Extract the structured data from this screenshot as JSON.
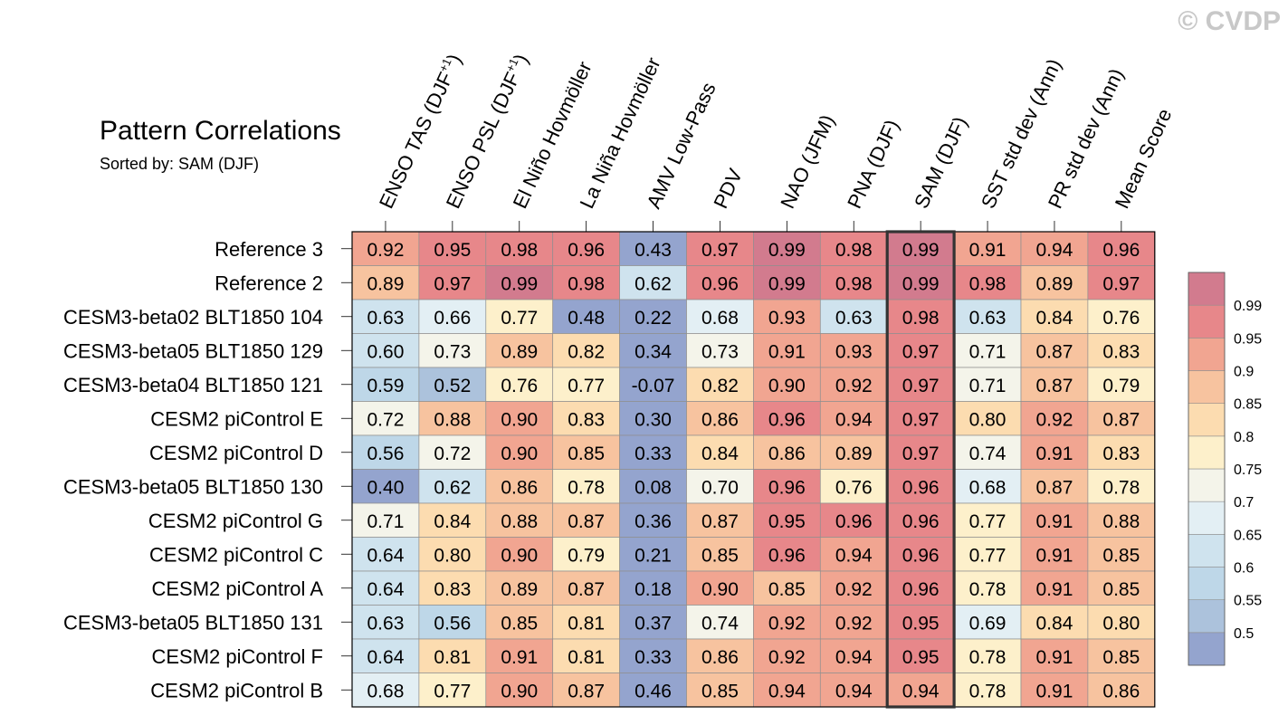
{
  "chart_data": {
    "type": "heatmap",
    "title": "Pattern Correlations",
    "subtitle": "Sorted by: SAM (DJF)",
    "watermark": "© CVDP",
    "highlight_column": "SAM (DJF)",
    "columns": [
      {
        "name": "ENSO TAS (DJF",
        "sup": "+1",
        "close": ")"
      },
      {
        "name": "ENSO PSL (DJF",
        "sup": "+1",
        "close": ")"
      },
      {
        "name": "El Niño Hovmöller"
      },
      {
        "name": "La Niña Hovmöller"
      },
      {
        "name": "AMV Low-Pass"
      },
      {
        "name": "PDV"
      },
      {
        "name": "NAO (JFM)"
      },
      {
        "name": "PNA (DJF)"
      },
      {
        "name": "SAM (DJF)"
      },
      {
        "name": "SST std dev (Ann)"
      },
      {
        "name": "PR std dev (Ann)"
      },
      {
        "name": "Mean Score"
      }
    ],
    "rows": [
      {
        "label": "Reference 3",
        "values": [
          "0.92",
          "0.95",
          "0.98",
          "0.96",
          "0.43",
          "0.97",
          "0.99",
          "0.98",
          "0.99",
          "0.91",
          "0.94",
          "0.96"
        ]
      },
      {
        "label": "Reference 2",
        "values": [
          "0.89",
          "0.97",
          "0.99",
          "0.98",
          "0.62",
          "0.96",
          "0.99",
          "0.98",
          "0.99",
          "0.98",
          "0.89",
          "0.97"
        ]
      },
      {
        "label": "CESM3-beta02 BLT1850 104",
        "values": [
          "0.63",
          "0.66",
          "0.77",
          "0.48",
          "0.22",
          "0.68",
          "0.93",
          "0.63",
          "0.98",
          "0.63",
          "0.84",
          "0.76"
        ]
      },
      {
        "label": "CESM3-beta05 BLT1850 129",
        "values": [
          "0.60",
          "0.73",
          "0.89",
          "0.82",
          "0.34",
          "0.73",
          "0.91",
          "0.93",
          "0.97",
          "0.71",
          "0.87",
          "0.83"
        ]
      },
      {
        "label": "CESM3-beta04 BLT1850 121",
        "values": [
          "0.59",
          "0.52",
          "0.76",
          "0.77",
          "-0.07",
          "0.82",
          "0.90",
          "0.92",
          "0.97",
          "0.71",
          "0.87",
          "0.79"
        ]
      },
      {
        "label": "CESM2 piControl E",
        "values": [
          "0.72",
          "0.88",
          "0.90",
          "0.83",
          "0.30",
          "0.86",
          "0.96",
          "0.94",
          "0.97",
          "0.80",
          "0.92",
          "0.87"
        ]
      },
      {
        "label": "CESM2 piControl D",
        "values": [
          "0.56",
          "0.72",
          "0.90",
          "0.85",
          "0.33",
          "0.84",
          "0.86",
          "0.89",
          "0.97",
          "0.74",
          "0.91",
          "0.83"
        ]
      },
      {
        "label": "CESM3-beta05 BLT1850 130",
        "values": [
          "0.40",
          "0.62",
          "0.86",
          "0.78",
          "0.08",
          "0.70",
          "0.96",
          "0.76",
          "0.96",
          "0.68",
          "0.87",
          "0.78"
        ]
      },
      {
        "label": "CESM2 piControl G",
        "values": [
          "0.71",
          "0.84",
          "0.88",
          "0.87",
          "0.36",
          "0.87",
          "0.95",
          "0.96",
          "0.96",
          "0.77",
          "0.91",
          "0.88"
        ]
      },
      {
        "label": "CESM2 piControl C",
        "values": [
          "0.64",
          "0.80",
          "0.90",
          "0.79",
          "0.21",
          "0.85",
          "0.96",
          "0.94",
          "0.96",
          "0.77",
          "0.91",
          "0.85"
        ]
      },
      {
        "label": "CESM2 piControl A",
        "values": [
          "0.64",
          "0.83",
          "0.89",
          "0.87",
          "0.18",
          "0.90",
          "0.85",
          "0.92",
          "0.96",
          "0.78",
          "0.91",
          "0.85"
        ]
      },
      {
        "label": "CESM3-beta05 BLT1850 131",
        "values": [
          "0.63",
          "0.56",
          "0.85",
          "0.81",
          "0.37",
          "0.74",
          "0.92",
          "0.92",
          "0.95",
          "0.69",
          "0.84",
          "0.80"
        ]
      },
      {
        "label": "CESM2 piControl F",
        "values": [
          "0.64",
          "0.81",
          "0.91",
          "0.81",
          "0.33",
          "0.86",
          "0.92",
          "0.94",
          "0.95",
          "0.78",
          "0.91",
          "0.85"
        ]
      },
      {
        "label": "CESM2 piControl B",
        "values": [
          "0.68",
          "0.77",
          "0.90",
          "0.87",
          "0.46",
          "0.85",
          "0.94",
          "0.94",
          "0.94",
          "0.78",
          "0.91",
          "0.86"
        ]
      }
    ],
    "colorbar": {
      "levels": [
        "0.99",
        "0.95",
        "0.9",
        "0.85",
        "0.8",
        "0.75",
        "0.7",
        "0.65",
        "0.6",
        "0.55",
        "0.5"
      ],
      "thresholds": [
        0.5,
        0.55,
        0.6,
        0.65,
        0.7,
        0.75,
        0.8,
        0.85,
        0.9,
        0.95,
        0.99
      ],
      "colors": [
        "#94a4ce",
        "#acc2dc",
        "#bed7e8",
        "#cfe3ee",
        "#e3eff4",
        "#f4f4ea",
        "#fdf0cb",
        "#fcdcb0",
        "#f7c39f",
        "#f1a591",
        "#e7878a",
        "#d27b8e"
      ]
    }
  }
}
